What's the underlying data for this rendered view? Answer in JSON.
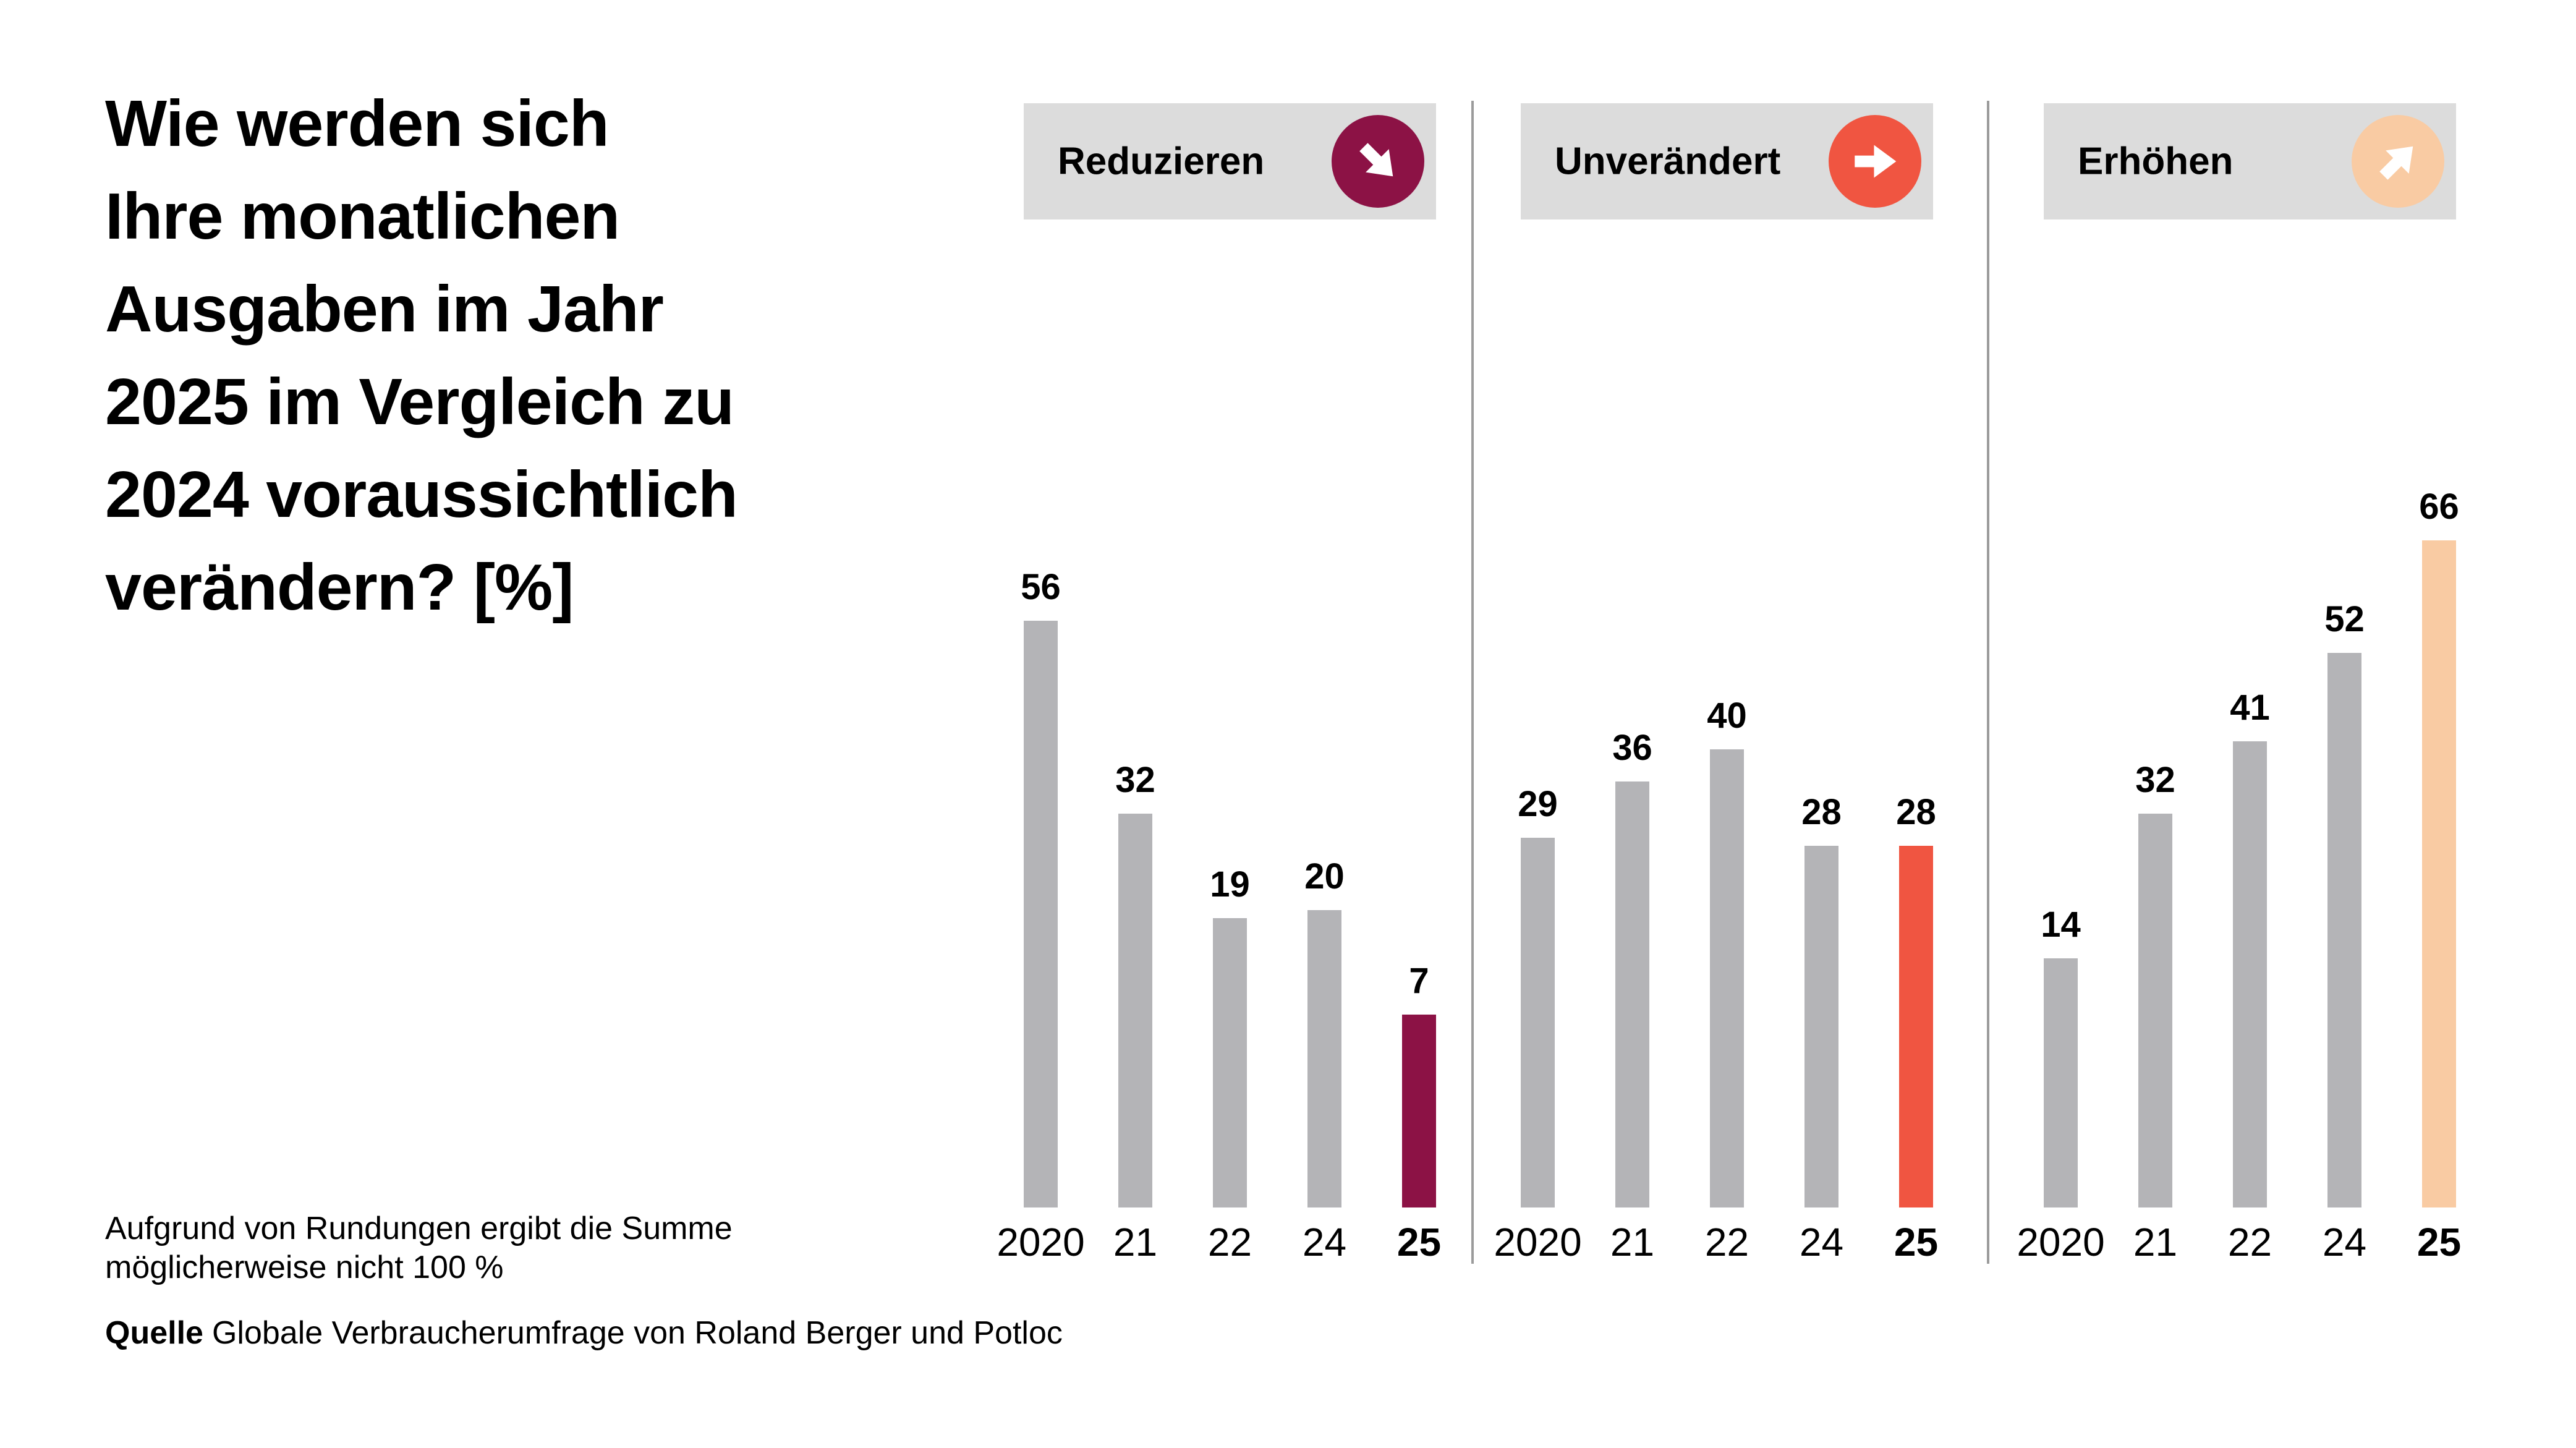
{
  "title": "Wie werden sich\nIhre monatlichen\nAusgaben im Jahr\n2025 im Vergleich zu\n2024 voraussichtlich\nverändern? [%]",
  "footnote": "Aufgrund von Rundungen ergibt die Summe\nmöglicherweise nicht 100 %",
  "source": {
    "label": "Quelle",
    "text": "Globale Verbraucherumfrage von Roland Berger und Potloc"
  },
  "colors": {
    "bar_default": "#B4B4B7",
    "chip_background": "#DCDCDC",
    "divider": "#9B9B9B",
    "background": "#FFFFFF",
    "text": "#000000",
    "reduzieren_accent": "#8C1245",
    "unveraendert_accent": "#F05541",
    "erhoehen_accent": "#F9CBA3"
  },
  "chart_data": {
    "type": "bar",
    "title": "Wie werden sich Ihre monatlichen Ausgaben im Jahr 2025 im Vergleich zu 2024 voraussichtlich verändern? [%]",
    "categories": [
      "2020",
      "21",
      "22",
      "24",
      "25"
    ],
    "highlight_category": "25",
    "highlight_index": 4,
    "unit": "%",
    "grid": false,
    "axes_visible": false,
    "value_labels": "above bars",
    "legend_position": "top, one header chip per panel",
    "ylim": [
      0,
      70
    ],
    "series": [
      {
        "name": "Reduzieren",
        "icon": "arrow-down-right",
        "accent": "#8C1245",
        "values": [
          56,
          32,
          19,
          20,
          7
        ]
      },
      {
        "name": "Unverändert",
        "icon": "arrow-right",
        "accent": "#F05541",
        "values": [
          29,
          36,
          40,
          28,
          28
        ]
      },
      {
        "name": "Erhöhen",
        "icon": "arrow-up-right",
        "accent": "#F9CBA3",
        "values": [
          14,
          32,
          41,
          52,
          66
        ]
      }
    ]
  }
}
